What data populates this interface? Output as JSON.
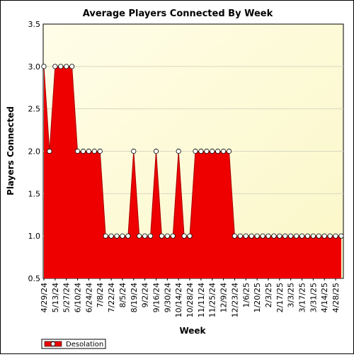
{
  "chart_data": {
    "type": "area",
    "title": "Average Players Connected By Week",
    "xlabel": "Week",
    "ylabel": "Players Connected",
    "ylim": [
      0.5,
      3.5
    ],
    "yticks": [
      "0.5",
      "1.0",
      "1.5",
      "2.0",
      "2.5",
      "3.0",
      "3.5"
    ],
    "x_tick_labels": [
      "4/29/24",
      "5/13/24",
      "5/27/24",
      "6/10/24",
      "6/24/24",
      "7/8/24",
      "7/22/24",
      "8/5/24",
      "8/19/24",
      "9/2/24",
      "9/16/24",
      "9/30/24",
      "10/14/24",
      "10/28/24",
      "11/11/24",
      "11/25/24",
      "12/9/24",
      "12/23/24",
      "1/6/25",
      "1/20/25",
      "2/3/25",
      "2/17/25",
      "3/3/25",
      "3/17/25",
      "3/31/25",
      "4/14/25",
      "4/28/25"
    ],
    "grid": true,
    "legend_position": "bottom-left",
    "series": [
      {
        "name": "Desolation",
        "color": "#ee0000",
        "values": [
          3,
          2,
          3,
          3,
          3,
          3,
          2,
          2,
          2,
          2,
          2,
          1,
          1,
          1,
          1,
          1,
          2,
          1,
          1,
          1,
          2,
          1,
          1,
          1,
          2,
          1,
          1,
          2,
          2,
          2,
          2,
          2,
          2,
          2,
          1,
          1,
          1,
          1,
          1,
          1,
          1,
          1,
          1,
          1,
          1,
          1,
          1,
          1,
          1,
          1,
          1,
          1,
          1,
          1
        ]
      }
    ]
  }
}
